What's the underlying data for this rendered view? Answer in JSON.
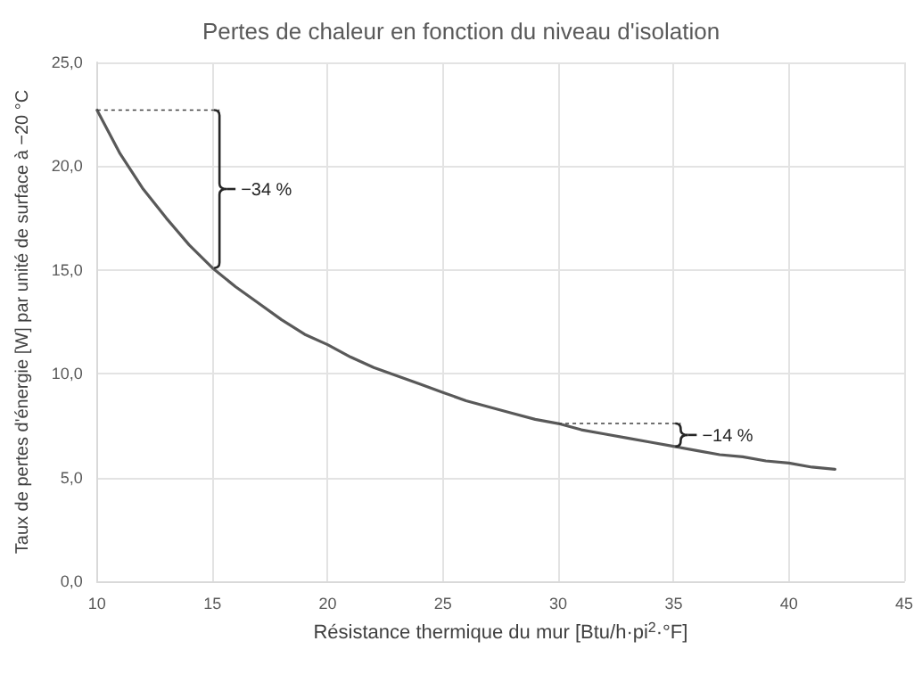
{
  "chart_data": {
    "type": "line",
    "title": "Pertes de chaleur en fonction du niveau d'isolation",
    "xlabel": "Résistance thermique du mur [Btu/h·pi$^{2}$·°F]",
    "ylabel": "Taux de pertes d'énergie [W] par unité de surface à −20 °C",
    "x": [
      10,
      11,
      12,
      13,
      14,
      15,
      16,
      17,
      18,
      19,
      20,
      21,
      22,
      23,
      24,
      25,
      26,
      27,
      28,
      29,
      30,
      31,
      32,
      33,
      34,
      35,
      36,
      37,
      38,
      39,
      40,
      41,
      42
    ],
    "series": [
      {
        "color": "#595959",
        "values": [
          22.7,
          20.6,
          18.9,
          17.5,
          16.2,
          15.1,
          14.2,
          13.4,
          12.6,
          11.9,
          11.4,
          10.8,
          10.3,
          9.9,
          9.5,
          9.1,
          8.7,
          8.4,
          8.1,
          7.8,
          7.6,
          7.3,
          7.1,
          6.9,
          6.7,
          6.5,
          6.3,
          6.1,
          6.0,
          5.8,
          5.7,
          5.5,
          5.4
        ]
      }
    ],
    "xlim": [
      10,
      45
    ],
    "xticks": [
      10,
      15,
      20,
      25,
      30,
      35,
      40,
      45
    ],
    "ylim": [
      0,
      25
    ],
    "yticks": [
      {
        "value": 0,
        "label": "0,0"
      },
      {
        "value": 5,
        "label": "5,0"
      },
      {
        "value": 10,
        "label": "10,0"
      },
      {
        "value": 15,
        "label": "15,0"
      },
      {
        "value": 20,
        "label": "20,0"
      },
      {
        "value": 25,
        "label": "25,0"
      }
    ],
    "annotations": [
      "−34 %",
      {
        "text": "−14 %",
        "x": 30,
        "y": 7.6
      }
    ],
    "grid": true,
    "marker": "none",
    "line_style": "solid"
  }
}
